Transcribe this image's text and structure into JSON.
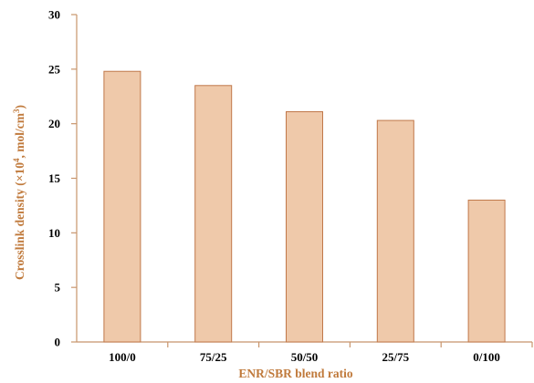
{
  "chart_data": {
    "type": "bar",
    "categories": [
      "100/0",
      "75/25",
      "50/50",
      "25/75",
      "0/100"
    ],
    "values": [
      24.8,
      23.5,
      21.1,
      20.3,
      13.0
    ],
    "xlabel": "ENR/SBR blend ratio",
    "ylabel": "Crosslink density (×10",
    "ylabel_sup1": "4",
    "ylabel_mid": ", mol/cm",
    "ylabel_sup2": "3",
    "ylabel_end": ")",
    "ylim": [
      0,
      30
    ],
    "yticks": [
      "0",
      "5",
      "10",
      "15",
      "20",
      "25",
      "30"
    ],
    "grid": false,
    "bar_fill": "#efc9aa",
    "bar_stroke": "#c0784a",
    "axis_color": "#c8956c",
    "label_color": "#c07a3c"
  }
}
